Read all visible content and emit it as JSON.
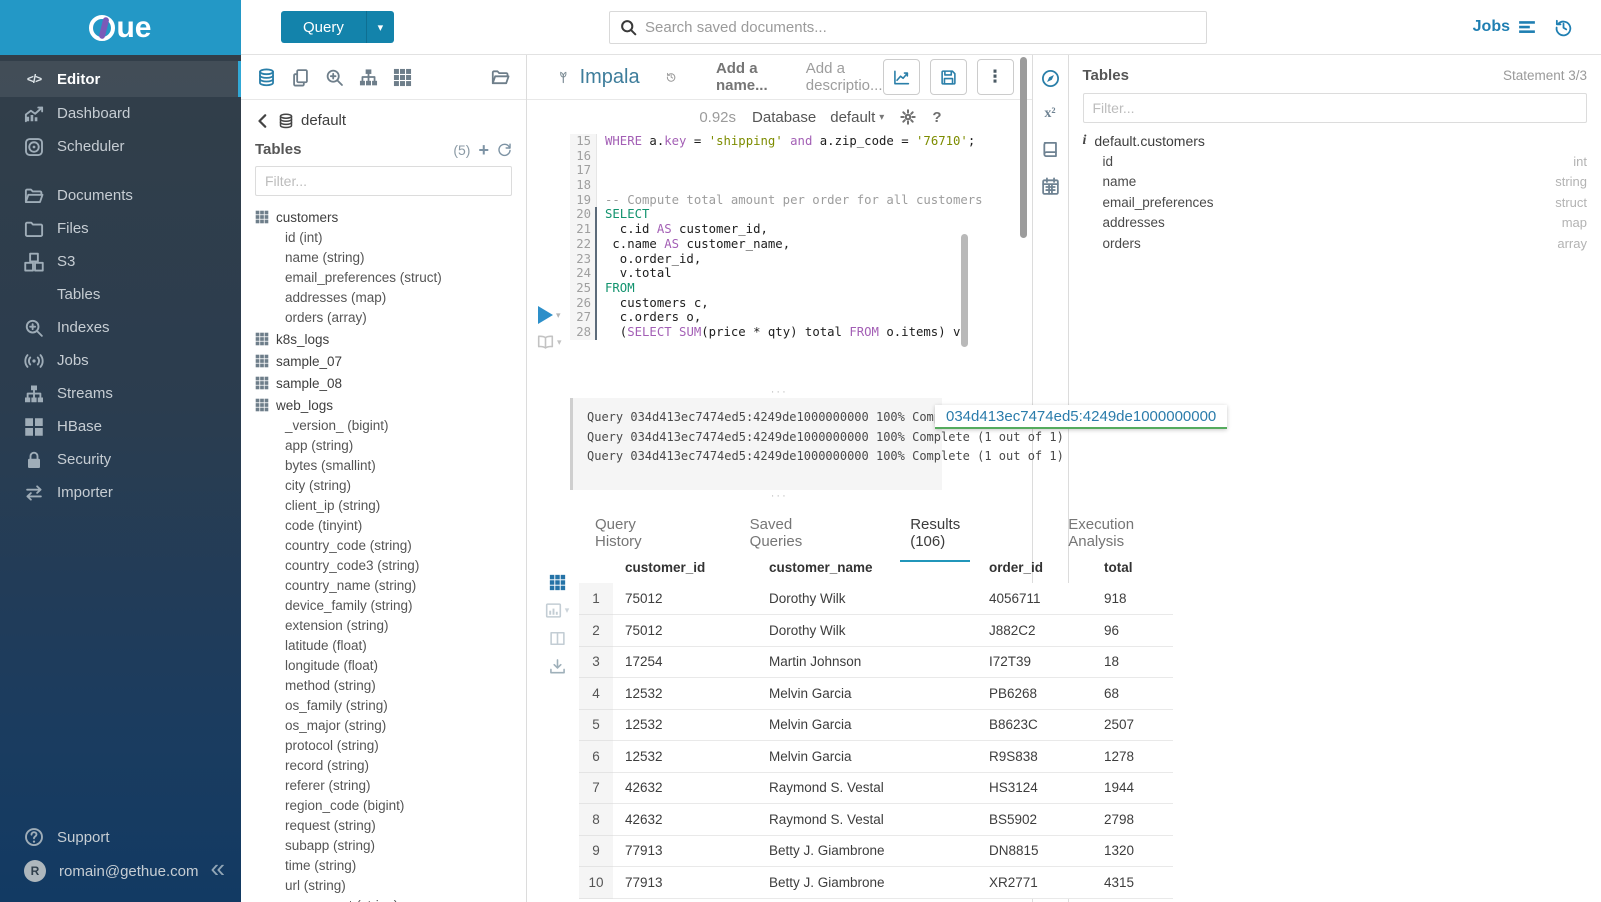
{
  "brand": {
    "logo_text": "ue"
  },
  "topbar": {
    "query_label": "Query",
    "search_placeholder": "Search saved documents...",
    "jobs_label": "Jobs"
  },
  "sidebar": {
    "items": [
      {
        "id": "editor",
        "label": "Editor",
        "icon": "code",
        "active": true,
        "group_start": false
      },
      {
        "id": "dashboard",
        "label": "Dashboard",
        "icon": "dashboard",
        "active": false,
        "group_start": false
      },
      {
        "id": "scheduler",
        "label": "Scheduler",
        "icon": "scheduler",
        "active": false,
        "group_start": false
      },
      {
        "id": "documents",
        "label": "Documents",
        "icon": "folder-open",
        "active": false,
        "group_start": true
      },
      {
        "id": "files",
        "label": "Files",
        "icon": "folder",
        "active": false,
        "group_start": false
      },
      {
        "id": "s3",
        "label": "S3",
        "icon": "cubes",
        "active": false,
        "group_start": false
      },
      {
        "id": "tables",
        "label": "Tables",
        "icon": "table-grid",
        "active": false,
        "group_start": false
      },
      {
        "id": "indexes",
        "label": "Indexes",
        "icon": "search-plus",
        "active": false,
        "group_start": false
      },
      {
        "id": "jobs",
        "label": "Jobs",
        "icon": "broadcast",
        "active": false,
        "group_start": false
      },
      {
        "id": "streams",
        "label": "Streams",
        "icon": "sitemap",
        "active": false,
        "group_start": false
      },
      {
        "id": "hbase",
        "label": "HBase",
        "icon": "blocks",
        "active": false,
        "group_start": false
      },
      {
        "id": "security",
        "label": "Security",
        "icon": "lock",
        "active": false,
        "group_start": false
      },
      {
        "id": "importer",
        "label": "Importer",
        "icon": "swap",
        "active": false,
        "group_start": false
      }
    ],
    "footer": {
      "support_label": "Support",
      "user_email": "romain@gethue.com",
      "avatar_letter": "R"
    },
    "collapse_glyph": "«"
  },
  "assist": {
    "toolbar_icons": [
      "db",
      "copy",
      "search-plus",
      "sitemap",
      "grid"
    ],
    "toolbar_right_icon": "folder-open",
    "db_name": "default",
    "section_title": "Tables",
    "count": "(5)",
    "filter_placeholder": "Filter...",
    "tables": [
      {
        "name": "customers",
        "columns": [
          "id (int)",
          "name (string)",
          "email_preferences (struct)",
          "addresses (map)",
          "orders (array)"
        ]
      },
      {
        "name": "k8s_logs",
        "columns": []
      },
      {
        "name": "sample_07",
        "columns": []
      },
      {
        "name": "sample_08",
        "columns": []
      },
      {
        "name": "web_logs",
        "columns": [
          "_version_ (bigint)",
          "app (string)",
          "bytes (smallint)",
          "city (string)",
          "client_ip (string)",
          "code (tinyint)",
          "country_code (string)",
          "country_code3 (string)",
          "country_name (string)",
          "device_family (string)",
          "extension (string)",
          "latitude (float)",
          "longitude (float)",
          "method (string)",
          "os_family (string)",
          "os_major (string)",
          "protocol (string)",
          "record (string)",
          "referer (string)",
          "region_code (bigint)",
          "request (string)",
          "subapp (string)",
          "time (string)",
          "url (string)",
          "user_agent (string)"
        ]
      }
    ]
  },
  "editor": {
    "engine": "Impala",
    "name_placeholder": "Add a name...",
    "description_placeholder": "Add a descriptio...",
    "duration": "0.92s",
    "database_label": "Database",
    "database_value": "default",
    "code_lines": [
      {
        "n": "15",
        "stripe": false,
        "tokens": [
          {
            "t": "WHERE",
            "c": "kw"
          },
          {
            "t": " a.",
            "c": ""
          },
          {
            "t": "key",
            "c": "kw"
          },
          {
            "t": " = ",
            "c": ""
          },
          {
            "t": "'shipping'",
            "c": "str"
          },
          {
            "t": " ",
            "c": ""
          },
          {
            "t": "and",
            "c": "kw"
          },
          {
            "t": " a.zip_code = ",
            "c": ""
          },
          {
            "t": "'76710'",
            "c": "str"
          },
          {
            "t": ";",
            "c": ""
          }
        ]
      },
      {
        "n": "16",
        "stripe": false,
        "tokens": []
      },
      {
        "n": "17",
        "stripe": false,
        "tokens": []
      },
      {
        "n": "18",
        "stripe": false,
        "tokens": []
      },
      {
        "n": "19",
        "stripe": false,
        "tokens": [
          {
            "t": "-- Compute total amount per order for all customers",
            "c": "cmt"
          }
        ]
      },
      {
        "n": "20",
        "stripe": true,
        "tokens": [
          {
            "t": "SELECT",
            "c": "kw2"
          }
        ]
      },
      {
        "n": "21",
        "stripe": true,
        "tokens": [
          {
            "t": "  c.id ",
            "c": ""
          },
          {
            "t": "AS",
            "c": "kw"
          },
          {
            "t": " customer_id,",
            "c": ""
          }
        ]
      },
      {
        "n": "22",
        "stripe": true,
        "tokens": [
          {
            "t": " c.name ",
            "c": ""
          },
          {
            "t": "AS",
            "c": "kw"
          },
          {
            "t": " customer_name,",
            "c": ""
          }
        ]
      },
      {
        "n": "23",
        "stripe": true,
        "tokens": [
          {
            "t": "  o.order_id,",
            "c": ""
          }
        ]
      },
      {
        "n": "24",
        "stripe": true,
        "tokens": [
          {
            "t": "  v.total",
            "c": ""
          }
        ]
      },
      {
        "n": "25",
        "stripe": true,
        "tokens": [
          {
            "t": "FROM",
            "c": "kw2"
          }
        ]
      },
      {
        "n": "26",
        "stripe": true,
        "tokens": [
          {
            "t": "  customers c,",
            "c": ""
          }
        ]
      },
      {
        "n": "27",
        "stripe": true,
        "tokens": [
          {
            "t": "  c.orders o,",
            "c": ""
          }
        ]
      },
      {
        "n": "28",
        "stripe": true,
        "tokens": [
          {
            "t": "  (",
            "c": ""
          },
          {
            "t": "SELECT",
            "c": "kw"
          },
          {
            "t": " ",
            "c": ""
          },
          {
            "t": "SUM",
            "c": "kw"
          },
          {
            "t": "(price * qty) total ",
            "c": ""
          },
          {
            "t": "FROM",
            "c": "kw"
          },
          {
            "t": " o.items) v;",
            "c": ""
          }
        ]
      }
    ]
  },
  "logs": {
    "lines": [
      "Query 034d413ec7474ed5:4249de1000000000 100% Complete (1 out of 1)",
      "Query 034d413ec7474ed5:4249de1000000000 100% Complete (1 out of 1)",
      "Query 034d413ec7474ed5:4249de1000000000 100% Complete (1 out of 1)"
    ],
    "tooltip": "034d413ec7474ed5:4249de1000000000",
    "handle_glyph": "···"
  },
  "tabs": [
    {
      "label": "Query History",
      "active": false
    },
    {
      "label": "Saved Queries",
      "active": false
    },
    {
      "label": "Results (106)",
      "active": true
    },
    {
      "label": "Execution Analysis",
      "active": false
    }
  ],
  "results": {
    "toolbar_icons": [
      "grid",
      "bar-chart",
      "columns",
      "download"
    ],
    "columns": [
      "customer_id",
      "customer_name",
      "order_id",
      "total"
    ],
    "rows": [
      [
        "1",
        "75012",
        "Dorothy Wilk",
        "4056711",
        "918"
      ],
      [
        "2",
        "75012",
        "Dorothy Wilk",
        "J882C2",
        "96"
      ],
      [
        "3",
        "17254",
        "Martin Johnson",
        "I72T39",
        "18"
      ],
      [
        "4",
        "12532",
        "Melvin Garcia",
        "PB6268",
        "68"
      ],
      [
        "5",
        "12532",
        "Melvin Garcia",
        "B8623C",
        "2507"
      ],
      [
        "6",
        "12532",
        "Melvin Garcia",
        "R9S838",
        "1278"
      ],
      [
        "7",
        "42632",
        "Raymond S. Vestal",
        "HS3124",
        "1944"
      ],
      [
        "8",
        "42632",
        "Raymond S. Vestal",
        "BS5902",
        "2798"
      ],
      [
        "9",
        "77913",
        "Betty J. Giambrone",
        "DN8815",
        "1320"
      ],
      [
        "10",
        "77913",
        "Betty J. Giambrone",
        "XR2771",
        "4315"
      ]
    ]
  },
  "right_strip_icons": [
    "compass",
    "superscript",
    "book",
    "calendar"
  ],
  "right_panel": {
    "title": "Tables",
    "statement": "Statement 3/3",
    "filter_placeholder": "Filter...",
    "table_name": "default.customers",
    "columns": [
      {
        "name": "id",
        "type": "int"
      },
      {
        "name": "name",
        "type": "string"
      },
      {
        "name": "email_preferences",
        "type": "struct"
      },
      {
        "name": "addresses",
        "type": "map"
      },
      {
        "name": "orders",
        "type": "array"
      }
    ]
  },
  "colors": {
    "brand": "#2398c6",
    "button": "#1383ab",
    "accent": "#2196ba",
    "link": "#1f7fb2"
  }
}
